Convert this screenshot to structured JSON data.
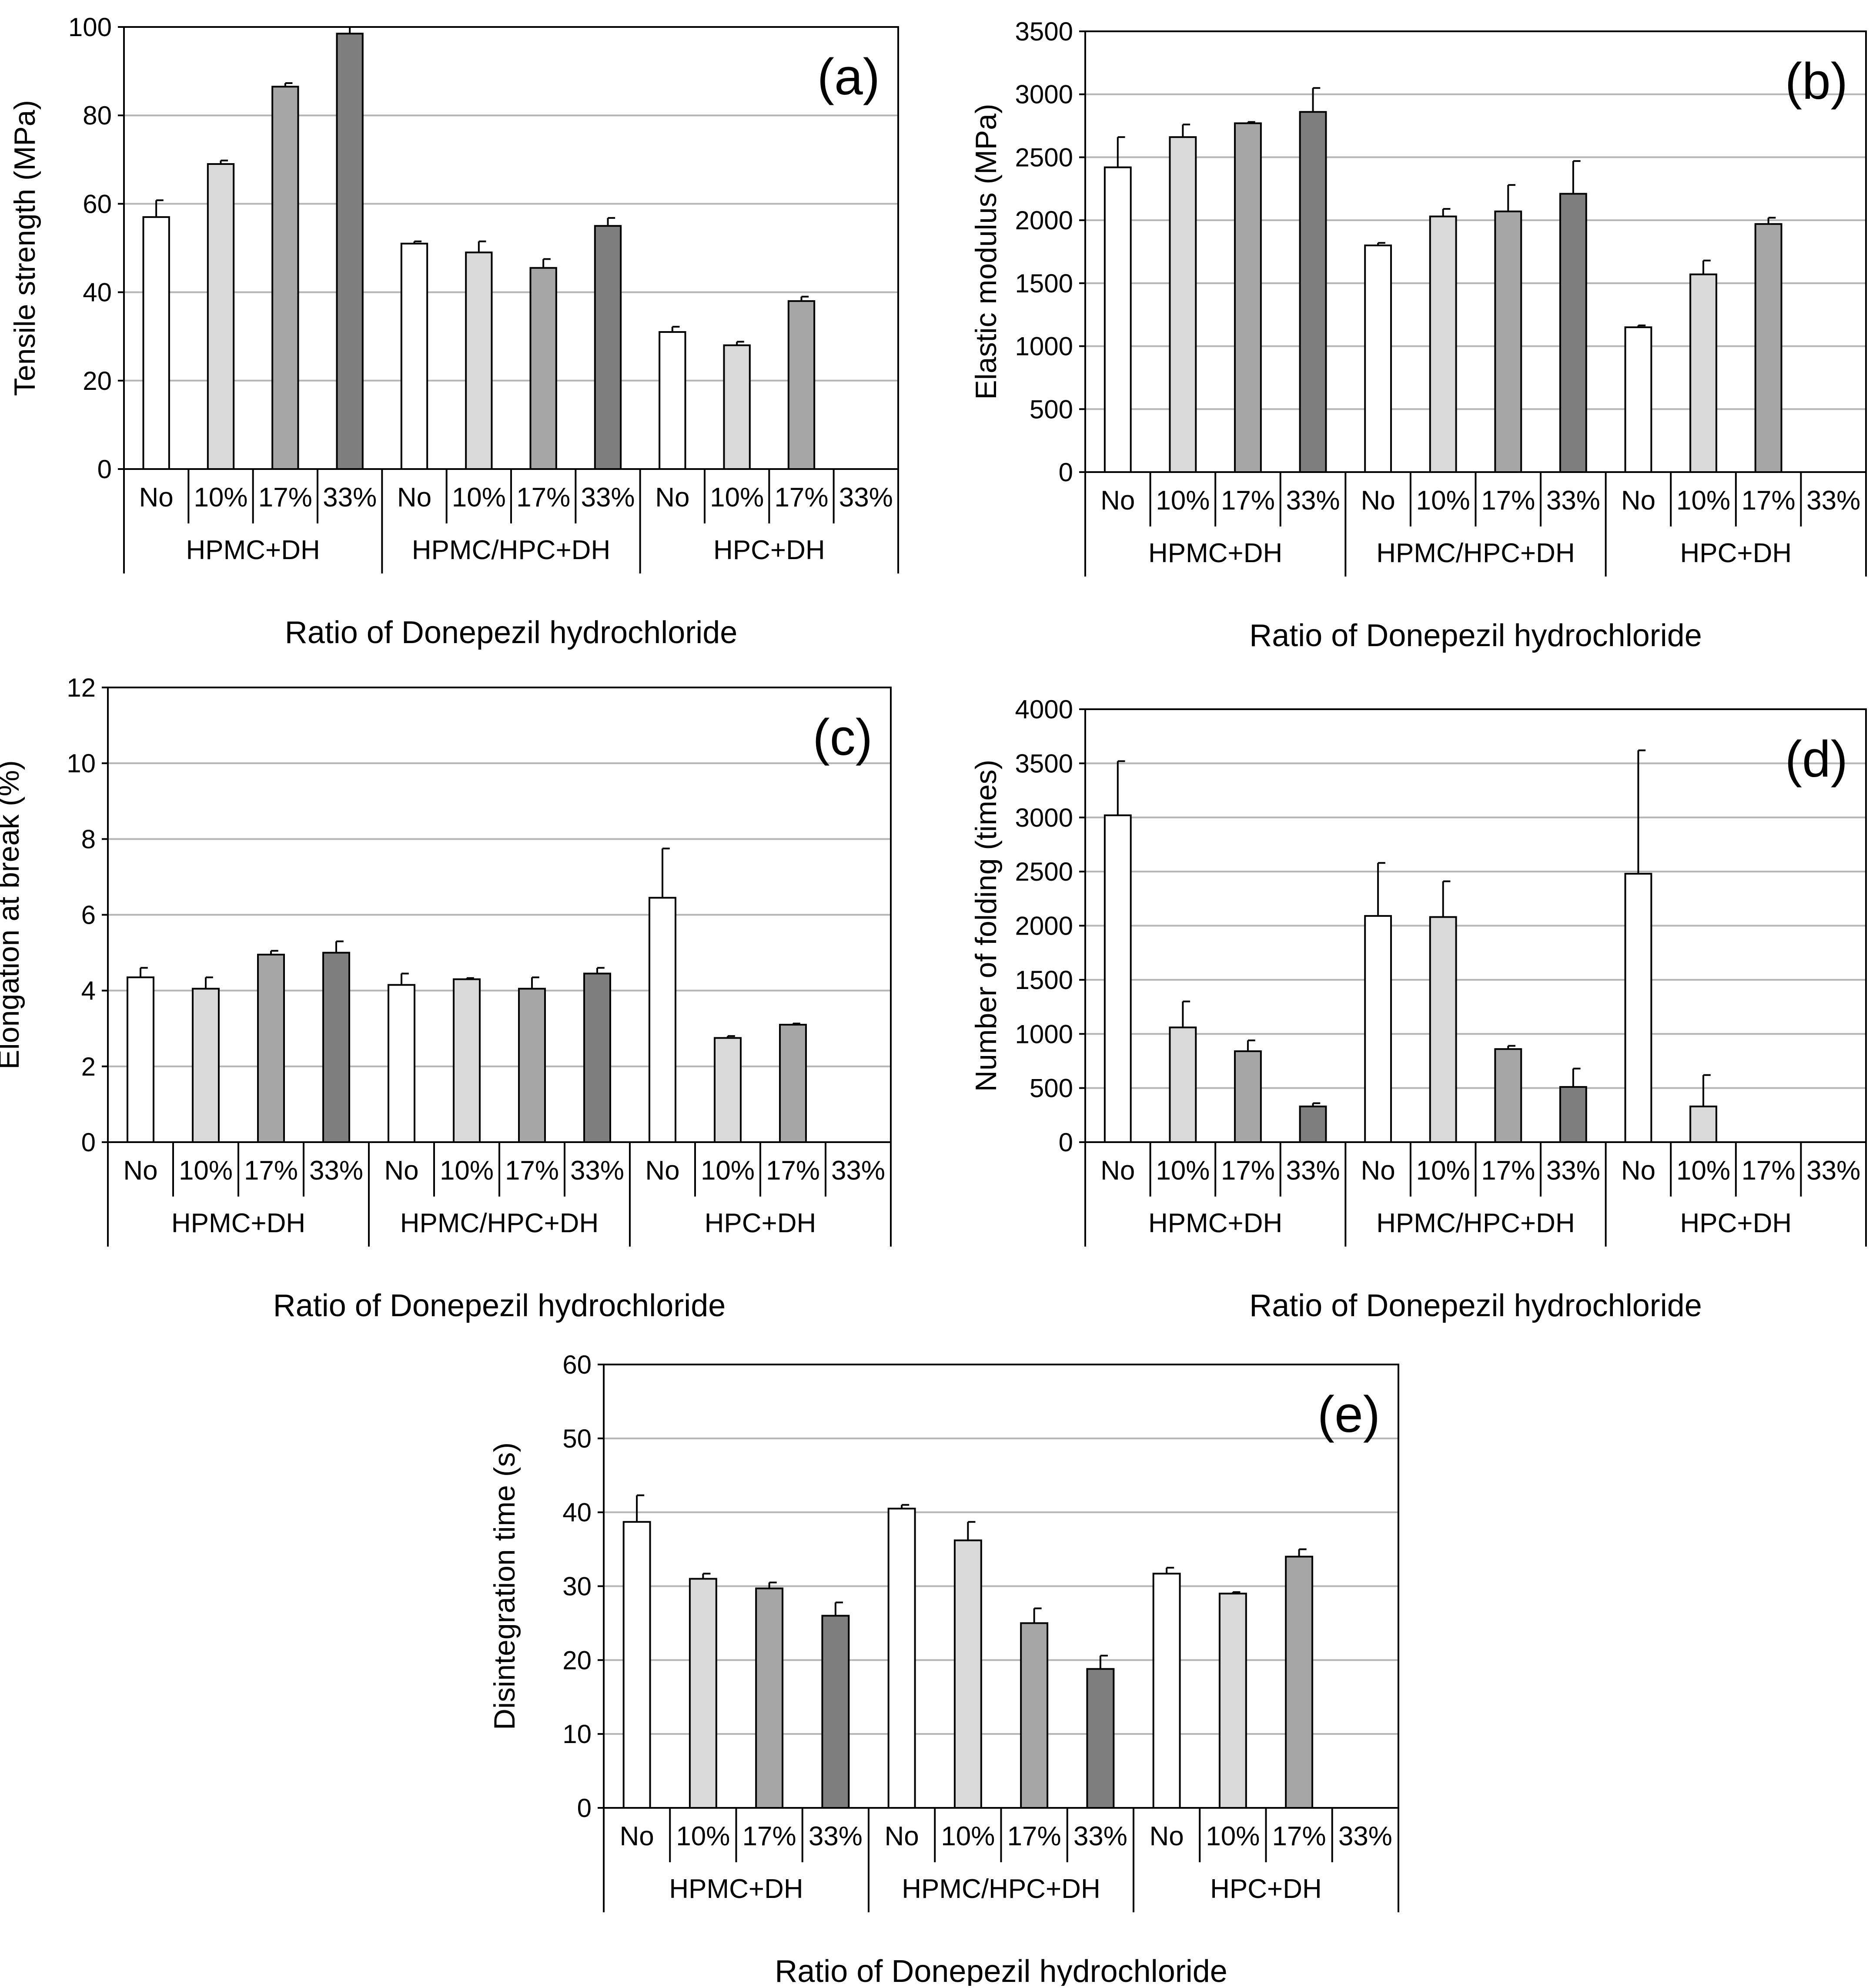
{
  "figure": {
    "xlabel": "Ratio of Donepezil hydrochloride",
    "categories": [
      "No",
      "10%",
      "17%",
      "33%"
    ],
    "groups": [
      "HPMC+DH",
      "HPMC/HPC+DH",
      "HPC+DH"
    ],
    "colors": {
      "No": "#ffffff",
      "10%": "#d9d9d9",
      "17%": "#a6a6a6",
      "33%": "#7f7f7f",
      "grid": "#b5b5b5",
      "axis": "#000000"
    }
  },
  "chart_data": [
    {
      "type": "bar",
      "panel_label": "(a)",
      "ylabel": "Tensile strength (MPa)",
      "ylim": [
        0,
        100
      ],
      "yticks": [
        0,
        20,
        40,
        60,
        80,
        100
      ],
      "grid": true,
      "xlabel": "Ratio of Donepezil hydrochloride",
      "groups": [
        "HPMC+DH",
        "HPMC/HPC+DH",
        "HPC+DH"
      ],
      "categories": [
        "No",
        "10%",
        "17%",
        "33%"
      ],
      "series": [
        {
          "group": "HPMC+DH",
          "values": [
            57,
            69,
            86.5,
            98.5
          ],
          "errors": [
            3.8,
            0.8,
            0.8,
            1.5
          ]
        },
        {
          "group": "HPMC/HPC+DH",
          "values": [
            51,
            49,
            45.5,
            55
          ],
          "errors": [
            0.5,
            2.5,
            2,
            1.8
          ]
        },
        {
          "group": "HPC+DH",
          "values": [
            31,
            28,
            38,
            null
          ],
          "errors": [
            1.2,
            0.8,
            1,
            null
          ]
        }
      ]
    },
    {
      "type": "bar",
      "panel_label": "(b)",
      "ylabel": "Elastic modulus (MPa)",
      "ylim": [
        0,
        3500
      ],
      "yticks": [
        0,
        500,
        1000,
        1500,
        2000,
        2500,
        3000,
        3500
      ],
      "grid": true,
      "xlabel": "Ratio of Donepezil hydrochloride",
      "groups": [
        "HPMC+DH",
        "HPMC/HPC+DH",
        "HPC+DH"
      ],
      "categories": [
        "No",
        "10%",
        "17%",
        "33%"
      ],
      "series": [
        {
          "group": "HPMC+DH",
          "values": [
            2420,
            2660,
            2770,
            2860
          ],
          "errors": [
            240,
            100,
            10,
            190
          ]
        },
        {
          "group": "HPMC/HPC+DH",
          "values": [
            1800,
            2030,
            2070,
            2210
          ],
          "errors": [
            20,
            60,
            210,
            260
          ]
        },
        {
          "group": "HPC+DH",
          "values": [
            1150,
            1570,
            1970,
            null
          ],
          "errors": [
            15,
            110,
            50,
            null
          ]
        }
      ]
    },
    {
      "type": "bar",
      "panel_label": "(c)",
      "ylabel": "Elongation at break (%)",
      "ylim": [
        0,
        12
      ],
      "yticks": [
        0,
        2,
        4,
        6,
        8,
        10,
        12
      ],
      "grid": true,
      "xlabel": "Ratio of Donepezil hydrochloride",
      "groups": [
        "HPMC+DH",
        "HPMC/HPC+DH",
        "HPC+DH"
      ],
      "categories": [
        "No",
        "10%",
        "17%",
        "33%"
      ],
      "series": [
        {
          "group": "HPMC+DH",
          "values": [
            4.35,
            4.05,
            4.95,
            5.0
          ],
          "errors": [
            0.25,
            0.3,
            0.1,
            0.3
          ]
        },
        {
          "group": "HPMC/HPC+DH",
          "values": [
            4.15,
            4.3,
            4.05,
            4.45
          ],
          "errors": [
            0.3,
            0.03,
            0.3,
            0.15
          ]
        },
        {
          "group": "HPC+DH",
          "values": [
            6.45,
            2.75,
            3.1,
            null
          ],
          "errors": [
            1.3,
            0.05,
            0.03,
            null
          ]
        }
      ]
    },
    {
      "type": "bar",
      "panel_label": "(d)",
      "ylabel": "Number of folding (times)",
      "ylim": [
        0,
        4000
      ],
      "yticks": [
        0,
        500,
        1000,
        1500,
        2000,
        2500,
        3000,
        3500,
        4000
      ],
      "grid": true,
      "xlabel": "Ratio of Donepezil hydrochloride",
      "groups": [
        "HPMC+DH",
        "HPMC/HPC+DH",
        "HPC+DH"
      ],
      "categories": [
        "No",
        "10%",
        "17%",
        "33%"
      ],
      "series": [
        {
          "group": "HPMC+DH",
          "values": [
            3020,
            1060,
            840,
            330
          ],
          "errors": [
            500,
            240,
            100,
            30
          ]
        },
        {
          "group": "HPMC/HPC+DH",
          "values": [
            2090,
            2080,
            860,
            510
          ],
          "errors": [
            490,
            330,
            30,
            170
          ]
        },
        {
          "group": "HPC+DH",
          "values": [
            2480,
            330,
            null,
            null
          ],
          "errors": [
            1140,
            290,
            null,
            null
          ]
        }
      ]
    },
    {
      "type": "bar",
      "panel_label": "(e)",
      "ylabel": "Disintegration time (s)",
      "ylim": [
        0,
        60
      ],
      "yticks": [
        0,
        10,
        20,
        30,
        40,
        50,
        60
      ],
      "grid": true,
      "xlabel": "Ratio of Donepezil hydrochloride",
      "groups": [
        "HPMC+DH",
        "HPMC/HPC+DH",
        "HPC+DH"
      ],
      "categories": [
        "No",
        "10%",
        "17%",
        "33%"
      ],
      "series": [
        {
          "group": "HPMC+DH",
          "values": [
            38.7,
            31,
            29.7,
            26
          ],
          "errors": [
            3.6,
            0.7,
            0.8,
            1.8
          ]
        },
        {
          "group": "HPMC/HPC+DH",
          "values": [
            40.5,
            36.2,
            25,
            18.8
          ],
          "errors": [
            0.5,
            2.5,
            2,
            1.8
          ]
        },
        {
          "group": "HPC+DH",
          "values": [
            31.7,
            29,
            34,
            null
          ],
          "errors": [
            0.8,
            0.2,
            1,
            null
          ]
        }
      ]
    }
  ]
}
